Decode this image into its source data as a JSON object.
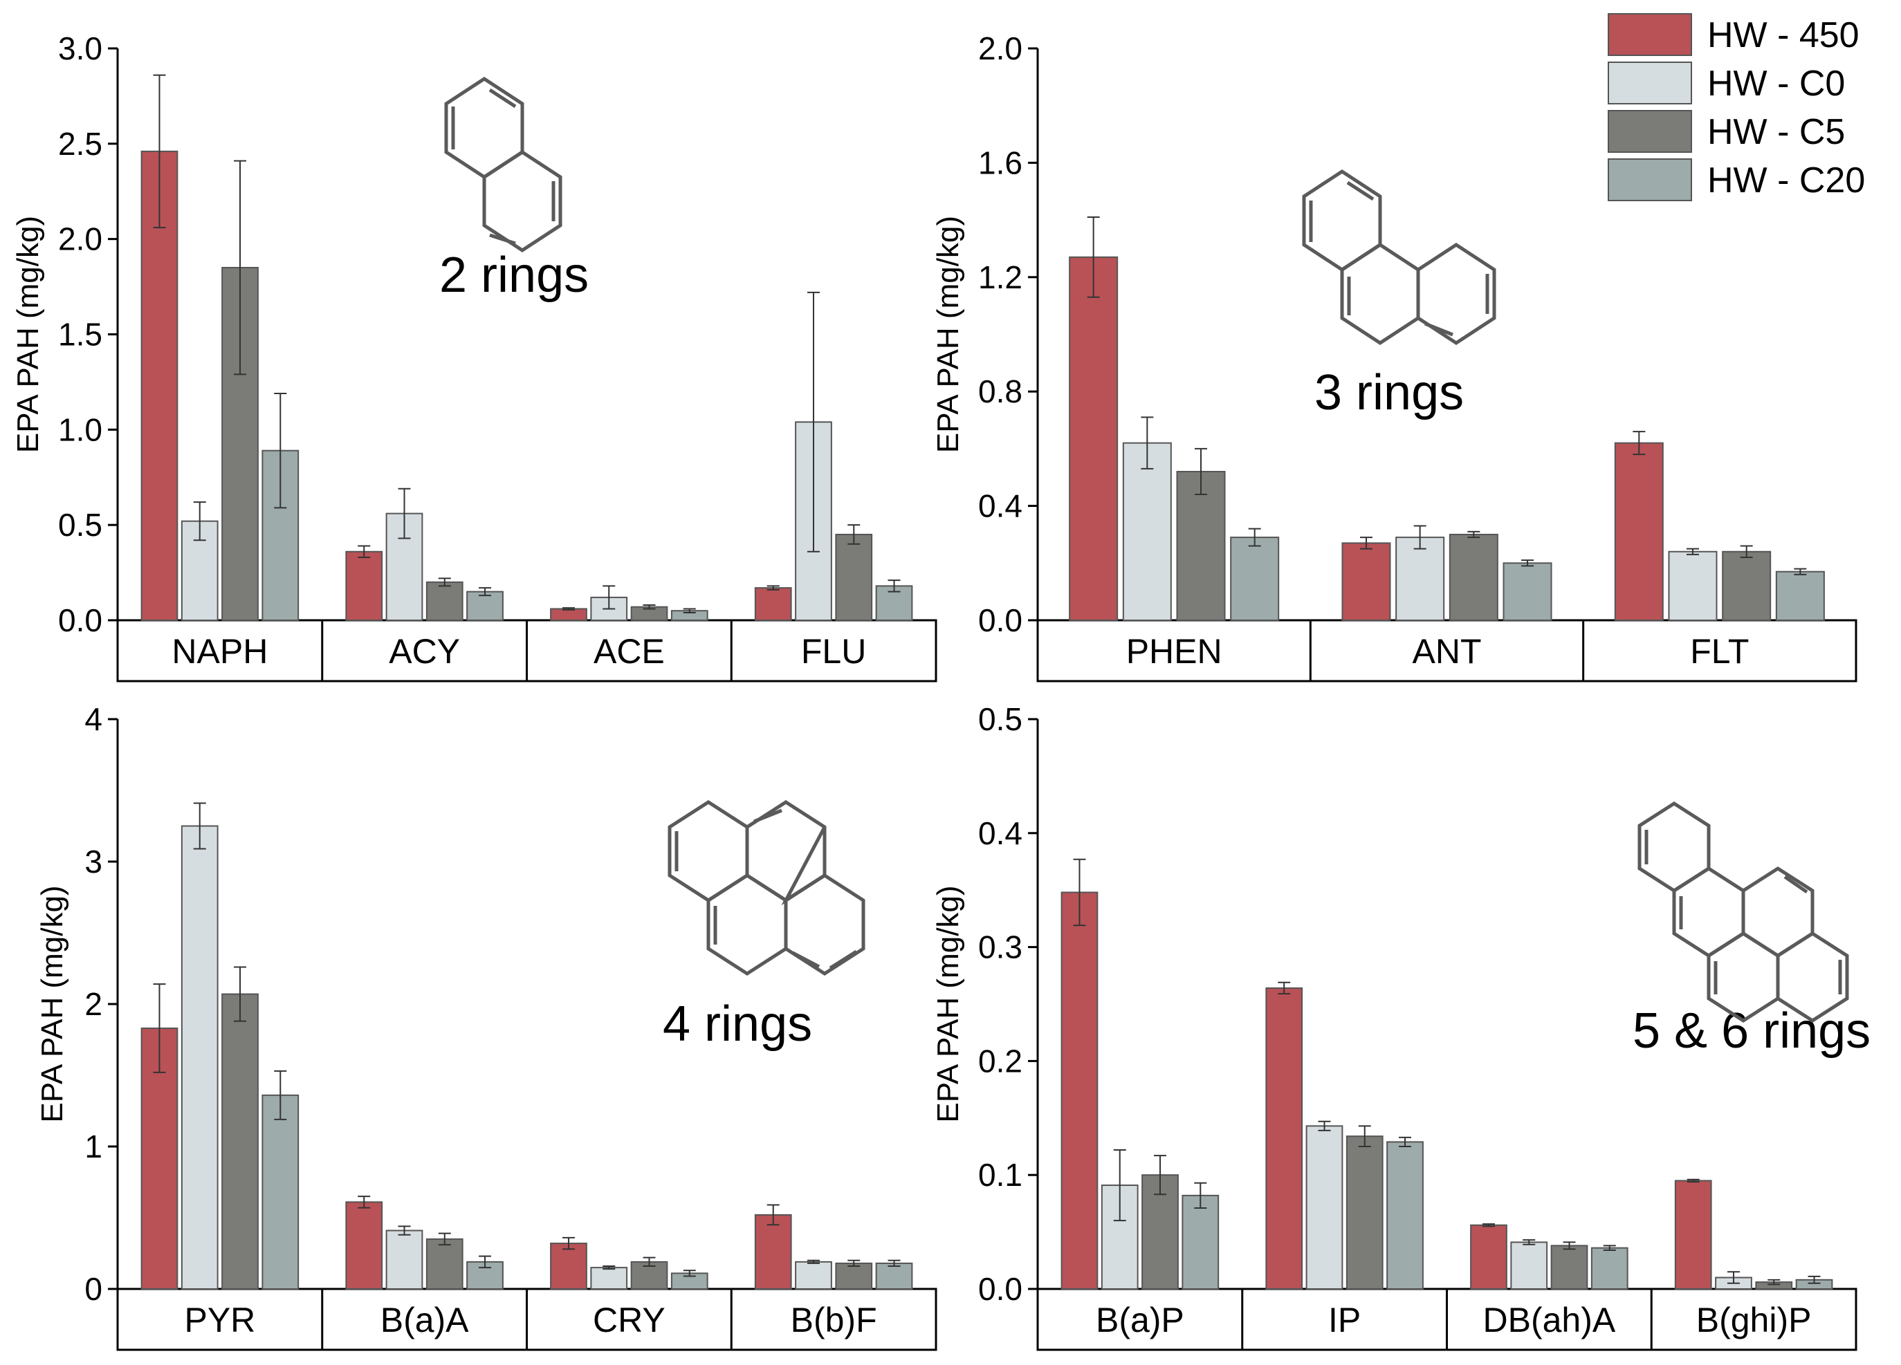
{
  "legend": {
    "series": [
      "HW - 450",
      "HW - C0",
      "HW - C5",
      "HW - C20"
    ],
    "colors": [
      "#b85257",
      "#d6dde0",
      "#7b7b77",
      "#9dabaa"
    ],
    "placement": "top-right"
  },
  "chart_data": [
    {
      "type": "bar",
      "title": "2 rings",
      "ylabel": "EPA PAH (mg/kg)",
      "ylim": [
        0,
        3.0
      ],
      "yticks": [
        "0.0",
        "0.5",
        "1.0",
        "1.5",
        "2.0",
        "2.5",
        "3.0"
      ],
      "categories": [
        "NAPH",
        "ACY",
        "ACE",
        "FLU"
      ],
      "series": [
        {
          "name": "HW - 450",
          "values": [
            2.46,
            0.36,
            0.06,
            0.17
          ],
          "errors": [
            0.4,
            0.03,
            0.005,
            0.01
          ]
        },
        {
          "name": "HW - C0",
          "values": [
            0.52,
            0.56,
            0.12,
            1.04
          ],
          "errors": [
            0.1,
            0.13,
            0.06,
            0.68
          ]
        },
        {
          "name": "HW - C5",
          "values": [
            1.85,
            0.2,
            0.07,
            0.45
          ],
          "errors": [
            0.56,
            0.02,
            0.01,
            0.05
          ]
        },
        {
          "name": "HW - C20",
          "values": [
            0.89,
            0.15,
            0.05,
            0.18
          ],
          "errors": [
            0.3,
            0.02,
            0.01,
            0.03
          ]
        }
      ]
    },
    {
      "type": "bar",
      "title": "3 rings",
      "ylabel": "EPA PAH (mg/kg)",
      "ylim": [
        0,
        2.0
      ],
      "yticks": [
        "0.0",
        "0.4",
        "0.8",
        "1.2",
        "1.6",
        "2.0"
      ],
      "categories": [
        "PHEN",
        "ANT",
        "FLT"
      ],
      "series": [
        {
          "name": "HW - 450",
          "values": [
            1.27,
            0.27,
            0.62
          ],
          "errors": [
            0.14,
            0.02,
            0.04
          ]
        },
        {
          "name": "HW - C0",
          "values": [
            0.62,
            0.29,
            0.24
          ],
          "errors": [
            0.09,
            0.04,
            0.01
          ]
        },
        {
          "name": "HW - C5",
          "values": [
            0.52,
            0.3,
            0.24
          ],
          "errors": [
            0.08,
            0.01,
            0.02
          ]
        },
        {
          "name": "HW - C20",
          "values": [
            0.29,
            0.2,
            0.17
          ],
          "errors": [
            0.03,
            0.01,
            0.01
          ]
        }
      ]
    },
    {
      "type": "bar",
      "title": "4 rings",
      "ylabel": "EPA PAH (mg/kg)",
      "ylim": [
        0,
        4
      ],
      "yticks": [
        "0",
        "1",
        "2",
        "3",
        "4"
      ],
      "categories": [
        "PYR",
        "B(a)A",
        "CRY",
        "B(b)F"
      ],
      "series": [
        {
          "name": "HW - 450",
          "values": [
            1.83,
            0.61,
            0.32,
            0.52
          ],
          "errors": [
            0.31,
            0.04,
            0.04,
            0.07
          ]
        },
        {
          "name": "HW - C0",
          "values": [
            3.25,
            0.41,
            0.15,
            0.19
          ],
          "errors": [
            0.16,
            0.03,
            0.01,
            0.01
          ]
        },
        {
          "name": "HW - C5",
          "values": [
            2.07,
            0.35,
            0.19,
            0.18
          ],
          "errors": [
            0.19,
            0.04,
            0.03,
            0.02
          ]
        },
        {
          "name": "HW - C20",
          "values": [
            1.36,
            0.19,
            0.11,
            0.18
          ],
          "errors": [
            0.17,
            0.04,
            0.02,
            0.02
          ]
        }
      ]
    },
    {
      "type": "bar",
      "title": "5 & 6 rings",
      "ylabel": "EPA PAH (mg/kg)",
      "ylim": [
        0,
        0.5
      ],
      "yticks": [
        "0.0",
        "0.1",
        "0.2",
        "0.3",
        "0.4",
        "0.5"
      ],
      "categories": [
        "B(a)P",
        "IP",
        "DB(ah)A",
        "B(ghi)P"
      ],
      "series": [
        {
          "name": "HW - 450",
          "values": [
            0.348,
            0.264,
            0.056,
            0.095
          ],
          "errors": [
            0.029,
            0.005,
            0.001,
            0.001
          ]
        },
        {
          "name": "HW - C0",
          "values": [
            0.091,
            0.143,
            0.041,
            0.01
          ],
          "errors": [
            0.031,
            0.004,
            0.002,
            0.005
          ]
        },
        {
          "name": "HW - C5",
          "values": [
            0.1,
            0.134,
            0.038,
            0.006
          ],
          "errors": [
            0.017,
            0.009,
            0.003,
            0.002
          ]
        },
        {
          "name": "HW - C20",
          "values": [
            0.082,
            0.129,
            0.036,
            0.008
          ],
          "errors": [
            0.011,
            0.004,
            0.002,
            0.003
          ]
        }
      ]
    }
  ]
}
